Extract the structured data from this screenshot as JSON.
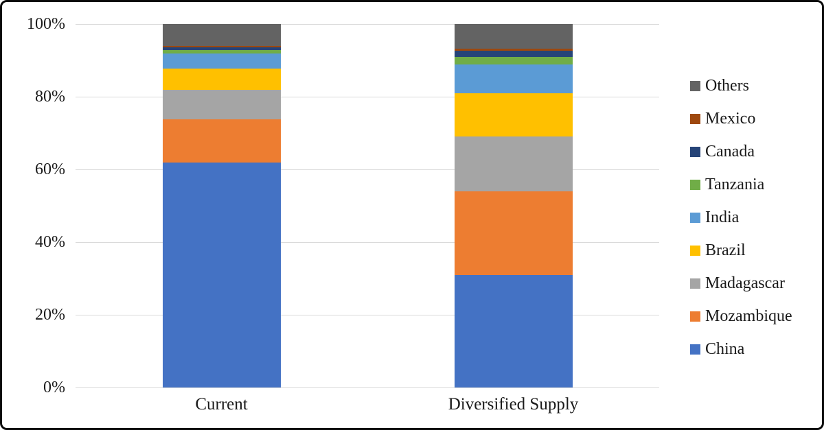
{
  "chart_data": {
    "type": "bar",
    "variant": "100-percent-stacked-column",
    "title": "",
    "xlabel": "",
    "ylabel": "",
    "unit": "%",
    "categories": [
      "Current",
      "Diversified Supply"
    ],
    "series": [
      {
        "name": "China",
        "color": "#4472C4",
        "values": [
          62,
          31
        ]
      },
      {
        "name": "Mozambique",
        "color": "#ED7D31",
        "values": [
          12,
          23
        ]
      },
      {
        "name": "Madagascar",
        "color": "#A5A5A5",
        "values": [
          8,
          15
        ]
      },
      {
        "name": "Brazil",
        "color": "#FFC000",
        "values": [
          6,
          12
        ]
      },
      {
        "name": "India",
        "color": "#5B9BD5",
        "values": [
          4.2,
          7.9
        ]
      },
      {
        "name": "Tanzania",
        "color": "#70AD47",
        "values": [
          0.8,
          2.1
        ]
      },
      {
        "name": "Canada",
        "color": "#264478",
        "values": [
          0.75,
          1.7
        ]
      },
      {
        "name": "Mexico",
        "color": "#9E480E",
        "values": [
          0.4,
          0.5
        ]
      },
      {
        "name": "Others",
        "color": "#636363",
        "values": [
          6.1,
          6.8
        ]
      }
    ],
    "y_axis": {
      "min": 0,
      "max": 100,
      "tick_step": 20,
      "tick_labels": [
        "0%",
        "20%",
        "40%",
        "60%",
        "80%",
        "100%"
      ]
    },
    "legend": {
      "position": "right",
      "order_top_to_bottom": [
        "Others",
        "Mexico",
        "Canada",
        "Tanzania",
        "India",
        "Brazil",
        "Madagascar",
        "Mozambique",
        "China"
      ]
    },
    "grid": {
      "horizontal_gridlines": true,
      "gridline_color": "#D9D9D9"
    },
    "background_color": "#FFFFFF",
    "border_color": "#0A0A0A"
  }
}
